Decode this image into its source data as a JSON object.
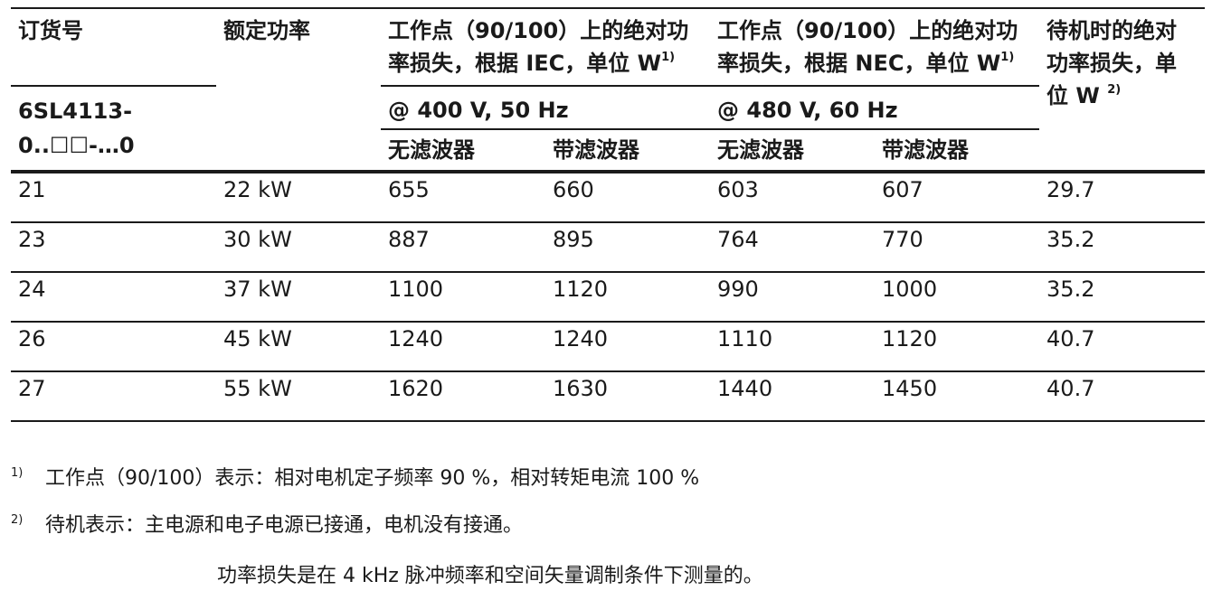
{
  "table": {
    "header": {
      "order_no": "订货号",
      "rated_power": "额定功率",
      "iec_loss": "工作点（90/100）上的绝对功率损失，根据 IEC，单位 W",
      "iec_sup": "1)",
      "nec_loss": "工作点（90/100）上的绝对功率损失，根据 NEC，单位 W",
      "nec_sup": "1)",
      "standby_loss": "待机时的绝对功率损失，单位 W",
      "standby_sup": "2)",
      "order_prefix": "6SL4113-0..☐☐-…0",
      "iec_cond": "@ 400 V, 50 Hz",
      "nec_cond": "@ 480 V, 60 Hz",
      "no_filter": "无滤波器",
      "with_filter": "带滤波器"
    },
    "rows": [
      {
        "code": "21",
        "power": "22 kW",
        "iec_nf": "655",
        "iec_f": "660",
        "nec_nf": "603",
        "nec_f": "607",
        "standby": "29.7"
      },
      {
        "code": "23",
        "power": "30 kW",
        "iec_nf": "887",
        "iec_f": "895",
        "nec_nf": "764",
        "nec_f": "770",
        "standby": "35.2"
      },
      {
        "code": "24",
        "power": "37 kW",
        "iec_nf": "1100",
        "iec_f": "1120",
        "nec_nf": "990",
        "nec_f": "1000",
        "standby": "35.2"
      },
      {
        "code": "26",
        "power": "45 kW",
        "iec_nf": "1240",
        "iec_f": "1240",
        "nec_nf": "1110",
        "nec_f": "1120",
        "standby": "40.7"
      },
      {
        "code": "27",
        "power": "55 kW",
        "iec_nf": "1620",
        "iec_f": "1630",
        "nec_nf": "1440",
        "nec_f": "1450",
        "standby": "40.7"
      }
    ]
  },
  "notes": [
    {
      "mark": "1)",
      "text": "工作点（90/100）表示：相对电机定子频率 90 %，相对转矩电流 100 %"
    },
    {
      "mark": "2)",
      "text": "待机表示：主电源和电子电源已接通，电机没有接通。"
    }
  ],
  "caption": "功率损失是在 4 kHz 脉冲频率和空间矢量调制条件下测量的。"
}
